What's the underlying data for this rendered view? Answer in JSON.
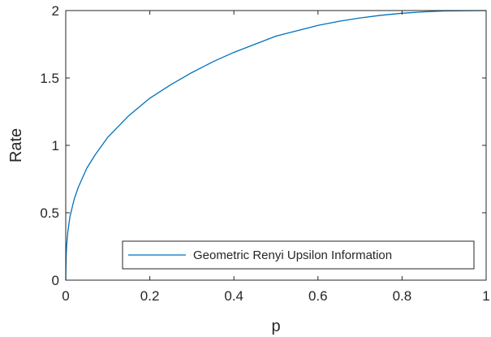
{
  "chart_data": {
    "type": "line",
    "title": "",
    "xlabel": "p",
    "ylabel": "Rate",
    "xlim": [
      0,
      1
    ],
    "ylim": [
      0,
      2
    ],
    "xticks": [
      0,
      0.2,
      0.4,
      0.6,
      0.8,
      1
    ],
    "xtick_labels": [
      "0",
      "0.2",
      "0.4",
      "0.6",
      "0.8",
      "1"
    ],
    "yticks": [
      0,
      0.5,
      1,
      1.5,
      2
    ],
    "ytick_labels": [
      "0",
      "0.5",
      "1",
      "1.5",
      "2"
    ],
    "grid": false,
    "legend_position": "bottom-right",
    "series": [
      {
        "name": "Geometric Renyi Upsilon Information",
        "color": "#0072BD",
        "x": [
          0,
          0.001,
          0.002,
          0.005,
          0.01,
          0.02,
          0.03,
          0.05,
          0.07,
          0.1,
          0.15,
          0.2,
          0.25,
          0.3,
          0.35,
          0.4,
          0.45,
          0.5,
          0.55,
          0.6,
          0.65,
          0.7,
          0.75,
          0.8,
          0.85,
          0.9,
          0.95,
          1.0
        ],
        "y": [
          0,
          0.185,
          0.25,
          0.36,
          0.47,
          0.6,
          0.69,
          0.83,
          0.93,
          1.06,
          1.22,
          1.35,
          1.45,
          1.54,
          1.62,
          1.69,
          1.75,
          1.81,
          1.85,
          1.89,
          1.92,
          1.945,
          1.965,
          1.98,
          1.99,
          1.997,
          1.999,
          2.0
        ]
      }
    ]
  }
}
